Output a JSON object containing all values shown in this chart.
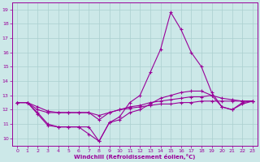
{
  "xlabel": "Windchill (Refroidissement éolien,°C)",
  "xlim": [
    -0.5,
    23.5
  ],
  "ylim": [
    9.5,
    19.5
  ],
  "yticks": [
    10,
    11,
    12,
    13,
    14,
    15,
    16,
    17,
    18,
    19
  ],
  "xticks": [
    0,
    1,
    2,
    3,
    4,
    5,
    6,
    7,
    8,
    9,
    10,
    11,
    12,
    13,
    14,
    15,
    16,
    17,
    18,
    19,
    20,
    21,
    22,
    23
  ],
  "bg_color": "#cce8e8",
  "line_color": "#990099",
  "grid_color": "#aacfcf",
  "line1_x": [
    0,
    1,
    2,
    3,
    4,
    5,
    6,
    7,
    8,
    9,
    10,
    11,
    12,
    13,
    14,
    15,
    16,
    17,
    18,
    19,
    20,
    21,
    22,
    23
  ],
  "line1_y": [
    12.5,
    12.5,
    11.8,
    11.0,
    10.8,
    10.8,
    10.8,
    10.8,
    9.8,
    11.1,
    11.5,
    12.5,
    13.0,
    14.6,
    16.2,
    18.8,
    17.6,
    16.0,
    15.0,
    13.2,
    12.2,
    12.0,
    12.5,
    12.6
  ],
  "line2_x": [
    0,
    1,
    2,
    3,
    4,
    5,
    6,
    7,
    8,
    9,
    10,
    11,
    12,
    13,
    14,
    15,
    16,
    17,
    18,
    19,
    20,
    21,
    22,
    23
  ],
  "line2_y": [
    12.5,
    12.5,
    12.2,
    11.9,
    11.8,
    11.8,
    11.8,
    11.8,
    11.3,
    11.8,
    12.0,
    12.2,
    12.3,
    12.5,
    12.6,
    12.7,
    12.8,
    12.9,
    12.9,
    13.0,
    12.8,
    12.7,
    12.6,
    12.6
  ],
  "line3_x": [
    0,
    1,
    2,
    3,
    4,
    5,
    6,
    7,
    8,
    9,
    10,
    11,
    12,
    13,
    14,
    15,
    16,
    17,
    18,
    19,
    20,
    21,
    22,
    23
  ],
  "line3_y": [
    12.5,
    12.5,
    12.0,
    11.8,
    11.8,
    11.8,
    11.8,
    11.8,
    11.6,
    11.8,
    12.0,
    12.1,
    12.2,
    12.3,
    12.4,
    12.4,
    12.5,
    12.5,
    12.6,
    12.6,
    12.6,
    12.6,
    12.6,
    12.6
  ],
  "line4_x": [
    0,
    1,
    2,
    3,
    4,
    5,
    6,
    7,
    8,
    9,
    10,
    11,
    12,
    13,
    14,
    15,
    16,
    17,
    18,
    19,
    20,
    21,
    22,
    23
  ],
  "line4_y": [
    12.5,
    12.5,
    11.7,
    10.9,
    10.8,
    10.8,
    10.8,
    10.3,
    9.8,
    11.1,
    11.3,
    11.8,
    12.0,
    12.4,
    12.8,
    13.0,
    13.2,
    13.3,
    13.3,
    13.0,
    12.2,
    12.0,
    12.4,
    12.6
  ]
}
